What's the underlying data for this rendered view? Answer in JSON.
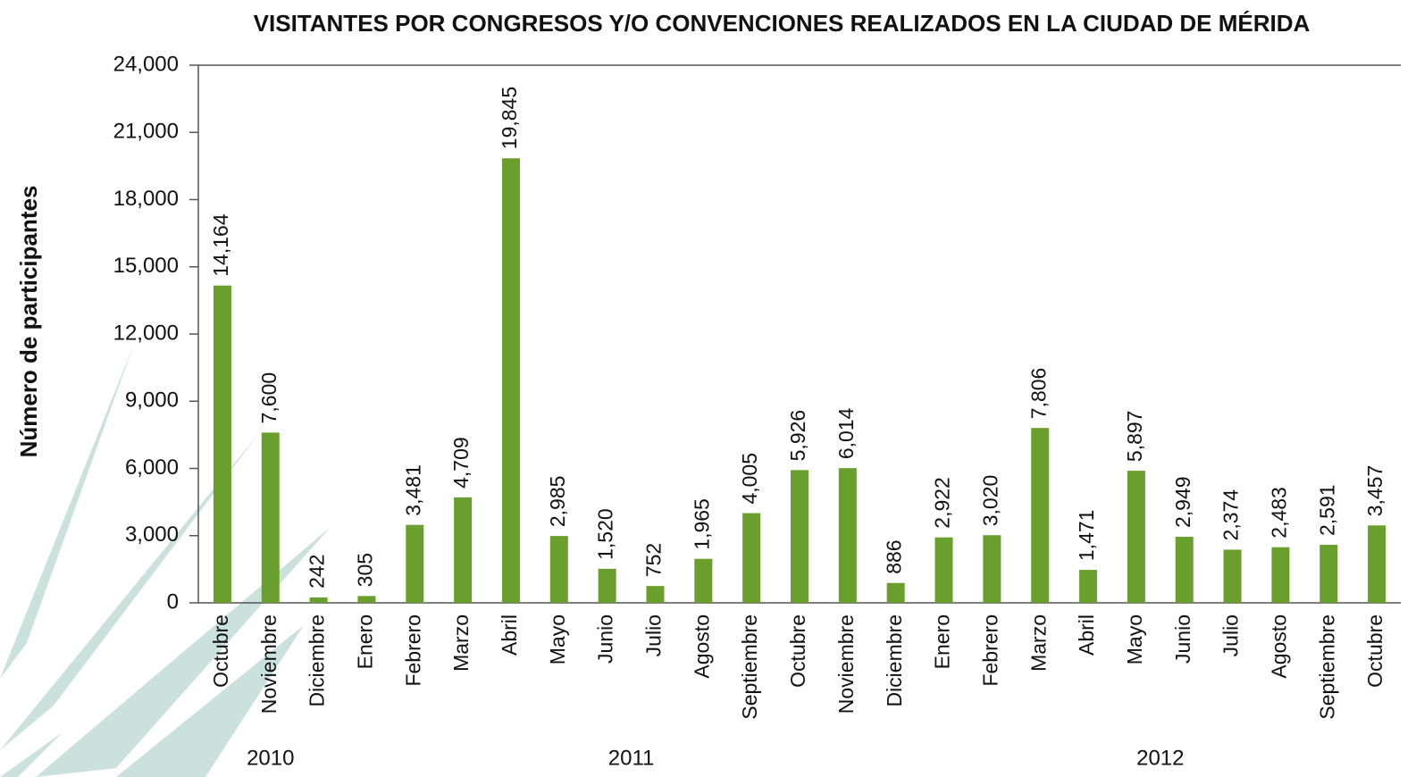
{
  "chart_data": {
    "type": "bar",
    "title": "VISITANTES POR CONGRESOS Y/O CONVENCIONES REALIZADOS EN LA CIUDAD DE MÉRIDA",
    "y_label": "Número de participantes",
    "categories": [
      "Octubre",
      "Noviembre",
      "Diciembre",
      "Enero",
      "Febrero",
      "Marzo",
      "Abril",
      "Mayo",
      "Junio",
      "Julio",
      "Agosto",
      "Septiembre",
      "Octubre",
      "Noviembre",
      "Diciembre",
      "Enero",
      "Febrero",
      "Marzo",
      "Abril",
      "Mayo",
      "Junio",
      "Julio",
      "Agosto",
      "Septiembre",
      "Octubre"
    ],
    "values": [
      14164,
      7600,
      242,
      305,
      3481,
      4709,
      19845,
      2985,
      1520,
      752,
      1965,
      4005,
      5926,
      6014,
      886,
      2922,
      3020,
      7806,
      1471,
      5897,
      2949,
      2374,
      2483,
      2591,
      3457
    ],
    "value_labels": [
      "14,164",
      "7,600",
      "242",
      "305",
      "3,481",
      "4,709",
      "19,845",
      "2,985",
      "1,520",
      "752",
      "1,965",
      "4,005",
      "5,926",
      "6,014",
      "886",
      "2,922",
      "3,020",
      "7,806",
      "1,471",
      "5,897",
      "2,949",
      "2,374",
      "2,483",
      "2,591",
      "3,457"
    ],
    "x_groups": [
      {
        "label": "2010",
        "span": 3
      },
      {
        "label": "2011",
        "span": 12
      },
      {
        "label": "2012",
        "span": 10
      }
    ],
    "color": "#6a9f2e",
    "ylim": [
      0,
      24000
    ],
    "yticks": [
      0,
      {
        "value": 3000,
        "label": "3,000"
      },
      {
        "value": 6000,
        "label": "6,000"
      },
      {
        "value": 9000,
        "label": "9,000"
      },
      {
        "value": 12000,
        "label": "12,000"
      },
      {
        "value": 15000,
        "label": "15,000"
      },
      {
        "value": 18000,
        "label": "18,000"
      },
      {
        "value": 21000,
        "label": "21,000"
      },
      {
        "value": 24000,
        "label": "24,000"
      }
    ],
    "grid": false
  }
}
